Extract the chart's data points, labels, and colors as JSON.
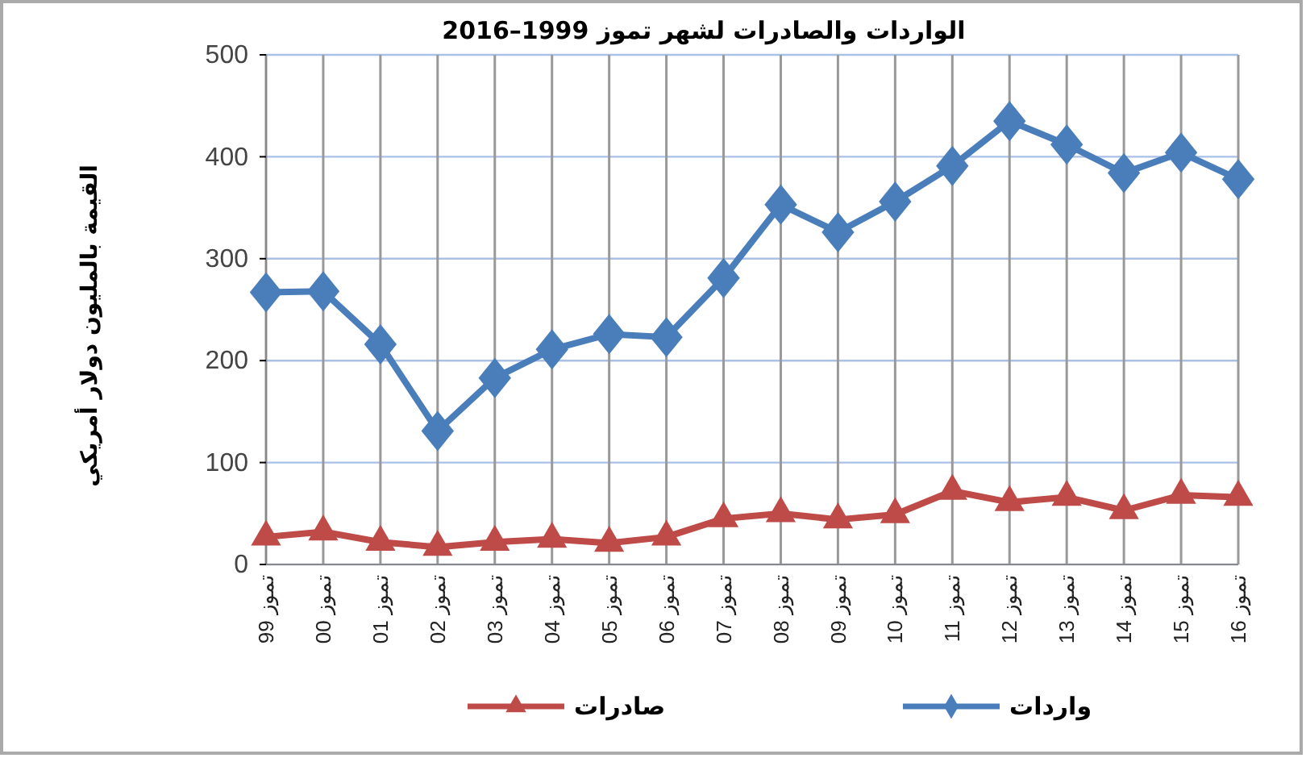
{
  "chart_data": {
    "type": "line",
    "title": "الواردات والصادرات لشهر تموز 1999–2016",
    "ylabel": "القيمة بالمليون دولار أمريكي",
    "categories": [
      "تموز 99",
      "تموز 00",
      "تموز 01",
      "تموز 02",
      "تموز 03",
      "تموز 04",
      "تموز 05",
      "تموز 06",
      "تموز 07",
      "تموز 08",
      "تموز 09",
      "تموز 10",
      "تموز 11",
      "تموز 12",
      "تموز 13",
      "تموز 14",
      "تموز 15",
      "تموز 16"
    ],
    "series": [
      {
        "name": "واردات",
        "color": "#4a7ebb",
        "marker": "diamond",
        "values": [
          267,
          268,
          216,
          131,
          183,
          211,
          226,
          223,
          281,
          353,
          326,
          356,
          391,
          435,
          412,
          384,
          404,
          378
        ]
      },
      {
        "name": "صادرات",
        "color": "#be4b48",
        "marker": "triangle",
        "values": [
          27,
          32,
          22,
          17,
          22,
          25,
          21,
          27,
          45,
          50,
          44,
          49,
          72,
          61,
          66,
          53,
          68,
          66
        ]
      }
    ],
    "ylim": [
      0,
      500
    ],
    "yticks": [
      0,
      100,
      200,
      300,
      400,
      500
    ],
    "grid": true,
    "legend": "bottom"
  }
}
